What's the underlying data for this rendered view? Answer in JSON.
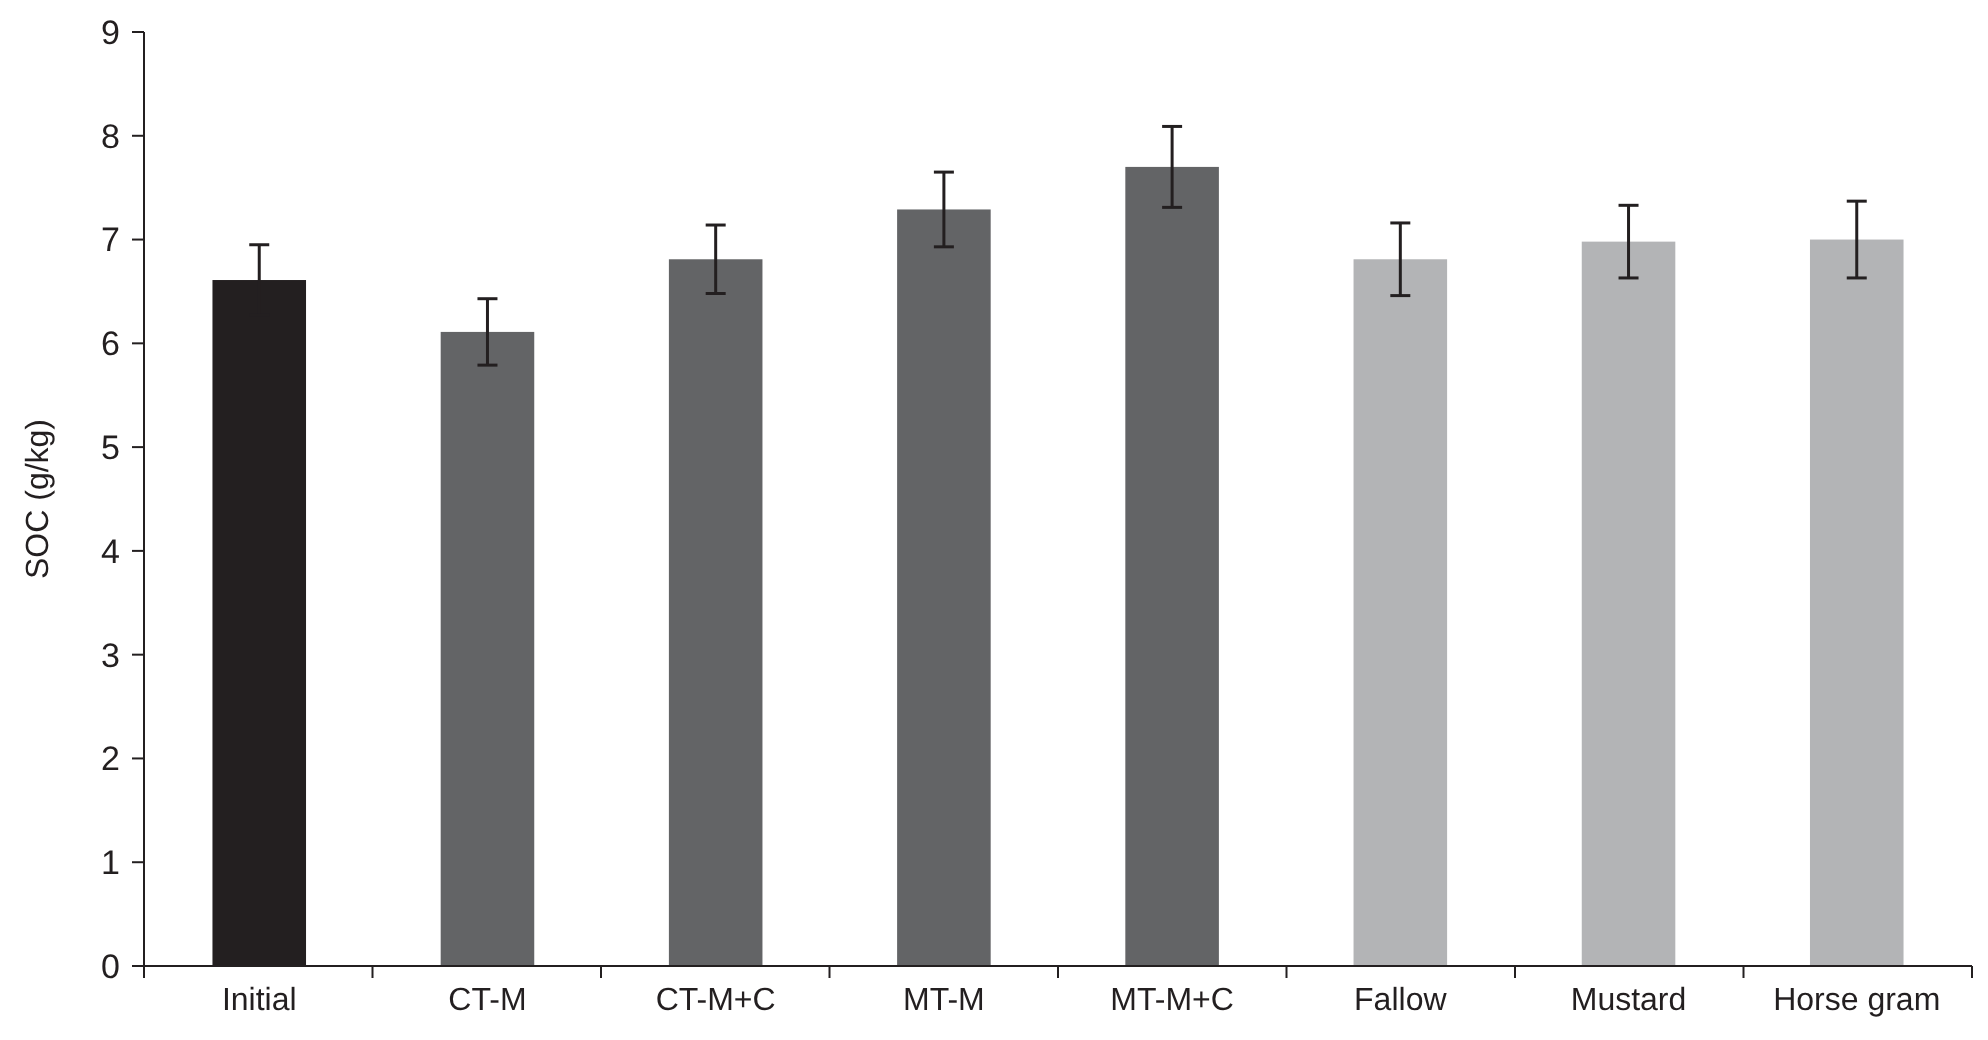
{
  "chart_data": {
    "type": "bar",
    "ylabel": "SOC (g/kg)",
    "categories": [
      "Initial",
      "CT-M",
      "CT-M+C",
      "MT-M",
      "MT-M+C",
      "Fallow",
      "Mustard",
      "Horse gram"
    ],
    "values": [
      6.61,
      6.11,
      6.81,
      7.29,
      7.7,
      6.81,
      6.98,
      7.0
    ],
    "errors": [
      0.34,
      0.32,
      0.33,
      0.36,
      0.39,
      0.35,
      0.35,
      0.37
    ],
    "colors": [
      "#231f20",
      "#636466",
      "#636466",
      "#636466",
      "#636466",
      "#b3b4b6",
      "#b3b4b6",
      "#b3b4b6"
    ],
    "ylim": [
      0,
      9
    ],
    "yticks": [
      0,
      1,
      2,
      3,
      4,
      5,
      6,
      7,
      8,
      9
    ],
    "grid": false
  }
}
